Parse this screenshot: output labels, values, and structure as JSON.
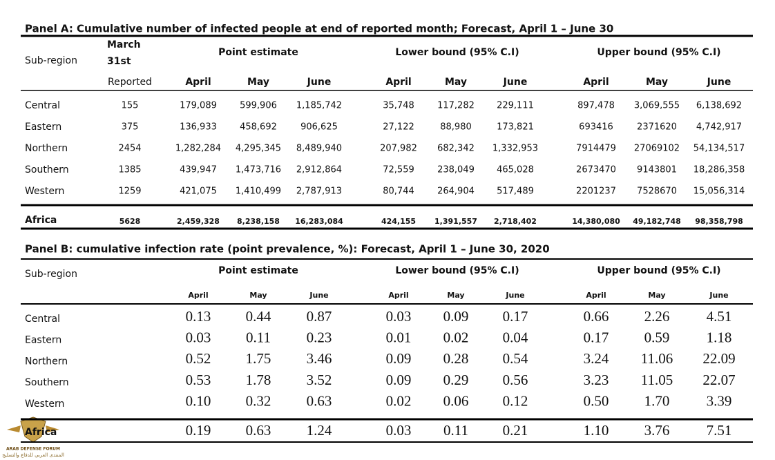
{
  "panel_a": {
    "title": "Panel A: Cumulative number of infected people at end of reported month; Forecast, April 1 – June 30",
    "header": {
      "sub_region": "Sub-region",
      "march": [
        "March",
        "31st"
      ],
      "groups": [
        "Point estimate",
        "Lower bound (95% C.I)",
        "Upper bound (95% C.I)"
      ],
      "columns": [
        "Reported",
        "April",
        "May",
        "June",
        "April",
        "May",
        "June",
        "April",
        "May",
        "June"
      ]
    },
    "rows": [
      [
        "Central",
        "155",
        "179,089",
        "599,906",
        "1,185,742",
        "35,748",
        "117,282",
        "229,111",
        "897,478",
        "3,069,555",
        "6,138,692"
      ],
      [
        "Eastern",
        "375",
        "136,933",
        "458,692",
        "906,625",
        "27,122",
        "88,980",
        "173,821",
        "693416",
        "2371620",
        "4,742,917"
      ],
      [
        "Northern",
        "2454",
        "1,282,284",
        "4,295,345",
        "8,489,940",
        "207,982",
        "682,342",
        "1,332,953",
        "7914479",
        "27069102",
        "54,134,517"
      ],
      [
        "Southern",
        "1385",
        "439,947",
        "1,473,716",
        "2,912,864",
        "72,559",
        "238,049",
        "465,028",
        "2673470",
        "9143801",
        "18,286,358"
      ],
      [
        "Western",
        "1259",
        "421,075",
        "1,410,499",
        "2,787,913",
        "80,744",
        "264,904",
        "517,489",
        "2201237",
        "7528670",
        "15,056,314"
      ]
    ],
    "total": [
      "Africa",
      "5628",
      "2,459,328",
      "8,238,158",
      "16,283,084",
      "424,155",
      "1,391,557",
      "2,718,402",
      "14,380,080",
      "49,182,748",
      "98,358,798"
    ]
  },
  "panel_b": {
    "title": "Panel B: cumulative infection rate (point prevalence, %): Forecast, April 1 – June 30, 2020",
    "header": {
      "sub_region": "Sub-region",
      "groups": [
        "Point estimate",
        "Lower bound (95% C.I)",
        "Upper bound (95% C.I)"
      ],
      "columns": [
        "April",
        "May",
        "June",
        "April",
        "May",
        "June",
        "April",
        "May",
        "June"
      ]
    },
    "rows": [
      [
        "Central",
        "0.13",
        "0.44",
        "0.87",
        "0.03",
        "0.09",
        "0.17",
        "0.66",
        "2.26",
        "4.51"
      ],
      [
        "Eastern",
        "0.03",
        "0.11",
        "0.23",
        "0.01",
        "0.02",
        "0.04",
        "0.17",
        "0.59",
        "1.18"
      ],
      [
        "Northern",
        "0.52",
        "1.75",
        "3.46",
        "0.09",
        "0.28",
        "0.54",
        "3.24",
        "11.06",
        "22.09"
      ],
      [
        "Southern",
        "0.53",
        "1.78",
        "3.52",
        "0.09",
        "0.29",
        "0.56",
        "3.23",
        "11.05",
        "22.07"
      ],
      [
        "Western",
        "0.10",
        "0.32",
        "0.63",
        "0.02",
        "0.06",
        "0.12",
        "0.50",
        "1.70",
        "3.39"
      ]
    ],
    "total": [
      "Africa",
      "0.19",
      "0.63",
      "1.24",
      "0.03",
      "0.11",
      "0.21",
      "1.10",
      "3.76",
      "7.51"
    ]
  },
  "watermark": {
    "name": "ARAB DEFENSE FORUM",
    "arabic": "المنتدى العربي للدفاع والتسليح"
  }
}
